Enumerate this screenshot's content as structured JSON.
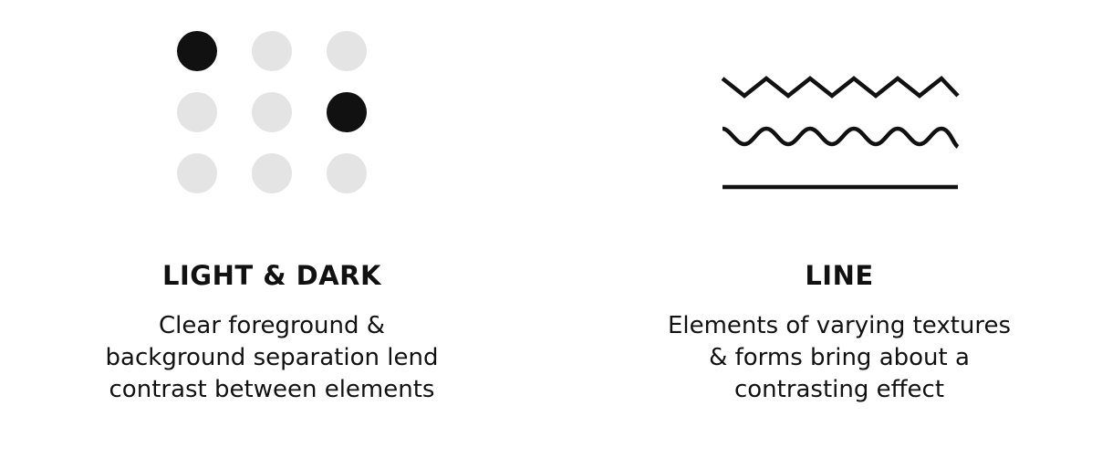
{
  "panels": [
    {
      "title": "LIGHT & DARK",
      "description_lines": [
        "Clear foreground &",
        "background separation lend",
        "contrast between elements"
      ],
      "dot_grid": {
        "rows": 3,
        "cols": 3,
        "dark": [
          [
            0,
            0
          ],
          [
            1,
            2
          ]
        ],
        "dark_color": "#111111",
        "light_color": "#e4e4e4"
      }
    },
    {
      "title": "LINE",
      "description_lines": [
        "Elements of varying textures",
        "& forms bring about a",
        "contrasting effect"
      ],
      "line_styles": [
        "zigzag",
        "wavy",
        "straight"
      ],
      "line_color": "#111111"
    }
  ]
}
